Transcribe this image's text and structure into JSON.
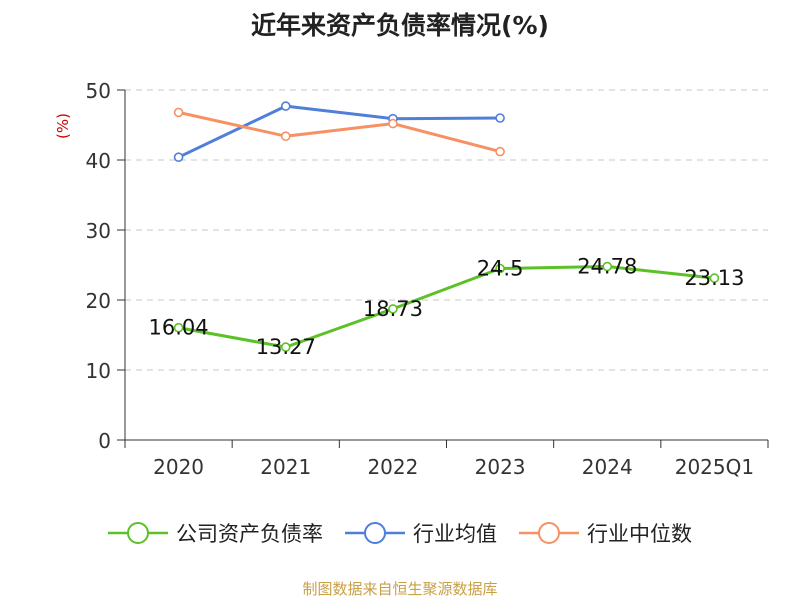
{
  "chart_data": {
    "type": "line",
    "title": "近年来资产负债率情况(%)",
    "ylabel": "(%)",
    "xlabel": "",
    "categories": [
      "2020",
      "2021",
      "2022",
      "2023",
      "2024",
      "2025Q1"
    ],
    "ylim": [
      0,
      50
    ],
    "yticks": [
      0,
      10,
      20,
      30,
      40,
      50
    ],
    "grid": true,
    "legend_position": "bottom",
    "series": [
      {
        "name": "公司资产负债率",
        "color": "#5cc126",
        "values": [
          16.04,
          13.27,
          18.73,
          24.5,
          24.78,
          23.13
        ],
        "labels": [
          "16.04",
          "13.27",
          "18.73",
          "24.5",
          "24.78",
          "23.13"
        ]
      },
      {
        "name": "行业均值",
        "color": "#4f7fd8",
        "values": [
          40.4,
          47.7,
          45.9,
          46.0,
          null,
          null
        ]
      },
      {
        "name": "行业中位数",
        "color": "#f79164",
        "values": [
          46.8,
          43.4,
          45.2,
          41.2,
          null,
          null
        ]
      }
    ]
  },
  "source": "制图数据来自恒生聚源数据库"
}
